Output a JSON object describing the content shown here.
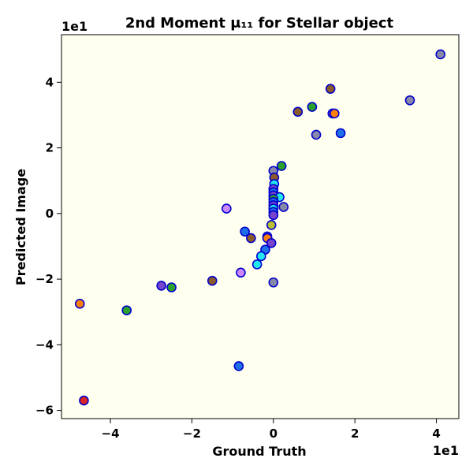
{
  "chart_data": {
    "type": "scatter",
    "title": "2nd Moment μ₁₁ for Stellar object",
    "xlabel": "Ground Truth",
    "ylabel": "Predicted Image",
    "x_offset_text": "1e1",
    "y_offset_text": "1e1",
    "xlim": [
      -52,
      45.5
    ],
    "ylim": [
      -62.5,
      54.5
    ],
    "x_ticks": [
      -40,
      -20,
      0,
      20,
      40
    ],
    "y_ticks": [
      -60,
      -40,
      -20,
      0,
      20,
      40
    ],
    "x_tick_labels": [
      "−4",
      "−2",
      "0",
      "2",
      "4"
    ],
    "y_tick_labels": [
      "−6",
      "−4",
      "−2",
      "0",
      "2",
      "4"
    ],
    "grid": false,
    "legend": "none",
    "colors": {
      "background": "#fffff0",
      "marker_edge": "#0000cc",
      "grey": "#8888a8",
      "blue": "#1f6fe8",
      "cyan": "#22e8f0",
      "green": "#2ca02c",
      "brown": "#8b5a2b",
      "purple": "#7744cc",
      "orange": "#ff7f0e",
      "red": "#d62728",
      "olive": "#b8c030",
      "pink": "#cc88ff"
    },
    "points": [
      {
        "x": 41.0,
        "y": 48.5,
        "c": "grey"
      },
      {
        "x": 33.5,
        "y": 34.5,
        "c": "grey"
      },
      {
        "x": 14.0,
        "y": 38.0,
        "c": "brown"
      },
      {
        "x": 6.0,
        "y": 31.0,
        "c": "brown"
      },
      {
        "x": 9.5,
        "y": 32.5,
        "c": "green"
      },
      {
        "x": 14.5,
        "y": 30.5,
        "c": "purple"
      },
      {
        "x": 15.0,
        "y": 30.5,
        "c": "orange"
      },
      {
        "x": 16.5,
        "y": 24.5,
        "c": "blue"
      },
      {
        "x": 10.5,
        "y": 24.0,
        "c": "grey"
      },
      {
        "x": 2.0,
        "y": 14.5,
        "c": "green"
      },
      {
        "x": 0.0,
        "y": 13.0,
        "c": "grey"
      },
      {
        "x": 0.2,
        "y": 11.0,
        "c": "brown"
      },
      {
        "x": 0.2,
        "y": 9.0,
        "c": "cyan"
      },
      {
        "x": 0.0,
        "y": 7.5,
        "c": "purple"
      },
      {
        "x": 0.0,
        "y": 6.5,
        "c": "blue"
      },
      {
        "x": 0.0,
        "y": 5.5,
        "c": "purple"
      },
      {
        "x": 1.5,
        "y": 5.0,
        "c": "cyan"
      },
      {
        "x": 0.0,
        "y": 4.5,
        "c": "green"
      },
      {
        "x": 0.0,
        "y": 3.5,
        "c": "blue"
      },
      {
        "x": 0.0,
        "y": 2.5,
        "c": "purple"
      },
      {
        "x": 2.5,
        "y": 2.0,
        "c": "grey"
      },
      {
        "x": 0.0,
        "y": 1.5,
        "c": "cyan"
      },
      {
        "x": 0.0,
        "y": 0.5,
        "c": "blue"
      },
      {
        "x": 0.0,
        "y": -0.5,
        "c": "purple"
      },
      {
        "x": -11.5,
        "y": 1.5,
        "c": "pink"
      },
      {
        "x": -0.5,
        "y": -3.5,
        "c": "olive"
      },
      {
        "x": -7.0,
        "y": -5.5,
        "c": "blue"
      },
      {
        "x": -5.5,
        "y": -7.5,
        "c": "brown"
      },
      {
        "x": -1.5,
        "y": -7.0,
        "c": "purple"
      },
      {
        "x": -1.5,
        "y": -7.5,
        "c": "orange"
      },
      {
        "x": -0.5,
        "y": -9.0,
        "c": "purple"
      },
      {
        "x": -2.0,
        "y": -11.0,
        "c": "blue"
      },
      {
        "x": -3.0,
        "y": -13.0,
        "c": "cyan"
      },
      {
        "x": -4.0,
        "y": -15.5,
        "c": "cyan"
      },
      {
        "x": -8.0,
        "y": -18.0,
        "c": "pink"
      },
      {
        "x": -15.0,
        "y": -20.5,
        "c": "brown"
      },
      {
        "x": 0.0,
        "y": -21.0,
        "c": "grey"
      },
      {
        "x": -27.5,
        "y": -22.0,
        "c": "purple"
      },
      {
        "x": -25.0,
        "y": -22.5,
        "c": "green"
      },
      {
        "x": -47.5,
        "y": -27.5,
        "c": "orange"
      },
      {
        "x": -36.0,
        "y": -29.5,
        "c": "green"
      },
      {
        "x": -8.5,
        "y": -46.5,
        "c": "blue"
      },
      {
        "x": -46.5,
        "y": -57.0,
        "c": "red"
      }
    ]
  }
}
